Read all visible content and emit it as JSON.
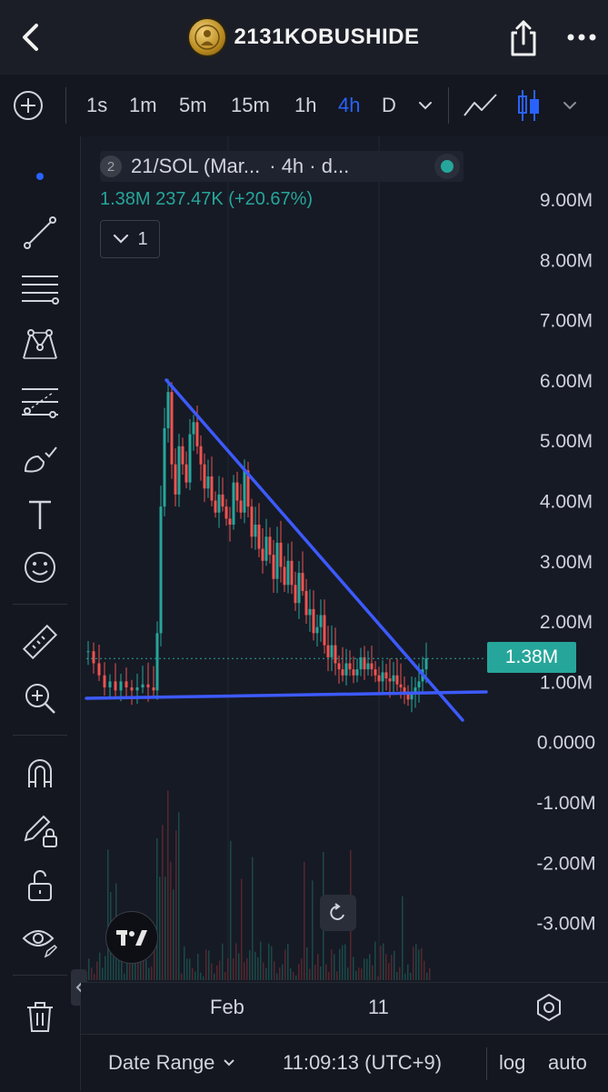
{
  "header": {
    "title": "2131KOBUSHIDE",
    "back_icon": "chevron-left-icon",
    "share_icon": "share-icon",
    "more_icon": "more-dots-icon"
  },
  "toolbar": {
    "timeframes": [
      "1s",
      "1m",
      "5m",
      "15m",
      "1h",
      "4h",
      "D"
    ],
    "active_timeframe": "4h",
    "accent_color": "#2962ff"
  },
  "legend": {
    "series_count": "2",
    "symbol": "21/SOL (Mar...",
    "interval": "· 4h · d...",
    "value": "1.38M",
    "change": "237.47K (+20.67%)",
    "collapse_count": "1"
  },
  "chart_data": {
    "type": "candlestick",
    "symbol": "21/SOL",
    "interval": "4h",
    "y_ticks": [
      "9.00M",
      "8.00M",
      "7.00M",
      "6.00M",
      "5.00M",
      "4.00M",
      "3.00M",
      "2.00M",
      "1.00M",
      "0.0000",
      "-1.00M",
      "-2.00M",
      "-3.00M"
    ],
    "ylim": [
      -3500000,
      9500000
    ],
    "x_ticks": [
      "Feb",
      "11"
    ],
    "last_price": "1.38M",
    "last_price_value": 1380000,
    "up_color": "#26a69a",
    "down_color": "#ef5350",
    "trendline_color": "#3d5afe",
    "grid": true
  },
  "bottom": {
    "date_range": "Date Range",
    "time": "11:09:13 (UTC+9)",
    "log": "log",
    "auto": "auto"
  }
}
